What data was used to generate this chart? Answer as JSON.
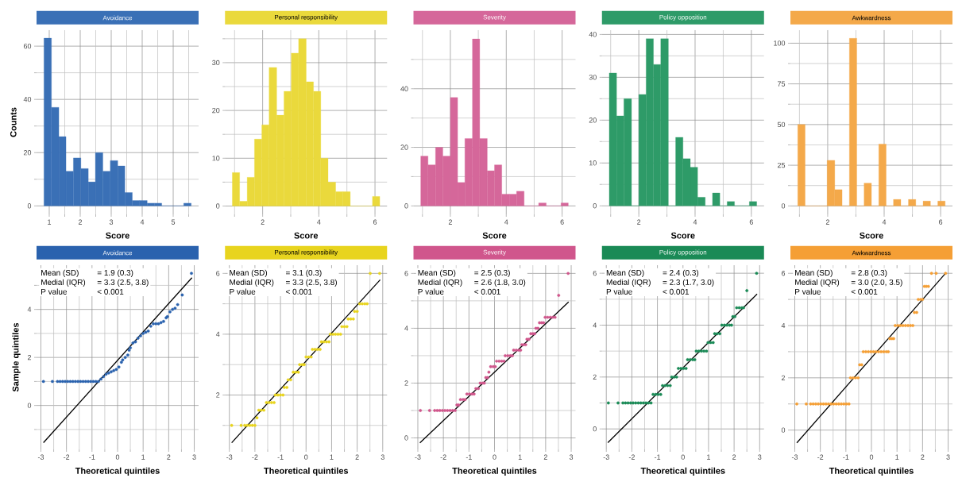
{
  "chart_data": [
    {
      "type": "histogram",
      "title": "Avoidance",
      "xlabel": "Score",
      "ylabel": "Counts",
      "color": "#3a70b6",
      "bins": [
        0.83,
        1.07,
        1.31,
        1.54,
        1.78,
        2.02,
        2.26,
        2.49,
        2.73,
        2.97,
        3.21,
        3.44,
        3.68,
        3.92,
        4.16,
        4.39,
        4.63,
        4.87,
        5.11,
        5.34,
        5.58
      ],
      "values": [
        63,
        37,
        26,
        13,
        18,
        14,
        9,
        20,
        13,
        17,
        15,
        5,
        2,
        2,
        1,
        1,
        0,
        0,
        0,
        1
      ],
      "xlim": [
        0.59,
        5.82
      ],
      "ylim": [
        -3.2,
        66
      ],
      "xticks": [
        1,
        2,
        3,
        4,
        5,
        {
          "value": 1.5,
          "label": null
        },
        {
          "value": 2.5,
          "label": null
        },
        {
          "value": 3.5,
          "label": null
        },
        {
          "value": 4.5,
          "label": null
        },
        {
          "value": 5.5,
          "label": null
        }
      ],
      "yticks": [
        0,
        20,
        40,
        60,
        {
          "value": 10,
          "label": null
        },
        {
          "value": 30,
          "label": null
        },
        {
          "value": 50,
          "label": null
        }
      ],
      "grid": true
    },
    {
      "type": "histogram",
      "title": "Personal responsibility",
      "xlabel": "Score",
      "color": "#ead93c",
      "bins": [
        0.92,
        1.18,
        1.45,
        1.71,
        1.97,
        2.23,
        2.5,
        2.76,
        3.02,
        3.28,
        3.55,
        3.81,
        4.07,
        4.33,
        4.6,
        4.86,
        5.12,
        5.38,
        5.65,
        5.91,
        6.17
      ],
      "values": [
        7,
        1,
        6,
        14,
        17,
        29,
        19,
        24,
        32,
        35,
        26,
        24,
        10,
        5,
        3,
        3,
        0,
        0,
        0,
        2
      ],
      "xlim": [
        0.66,
        6.43
      ],
      "ylim": [
        -1.75,
        36.8
      ],
      "xticks": [
        2,
        4,
        6,
        {
          "value": 1,
          "label": null
        },
        {
          "value": 3,
          "label": null
        },
        {
          "value": 5,
          "label": null
        }
      ],
      "yticks": [
        0,
        10,
        20,
        30,
        {
          "value": 5,
          "label": null
        },
        {
          "value": 15,
          "label": null
        },
        {
          "value": 25,
          "label": null
        },
        {
          "value": 35,
          "label": null
        }
      ],
      "grid": true
    },
    {
      "type": "histogram",
      "title": "Severity",
      "xlabel": "Score",
      "color": "#d5679a",
      "bins": [
        0.94,
        1.2,
        1.47,
        1.73,
        2.0,
        2.26,
        2.52,
        2.79,
        3.05,
        3.32,
        3.58,
        3.84,
        4.11,
        4.37,
        4.64,
        4.9,
        5.16,
        5.43,
        5.69,
        5.96,
        6.22
      ],
      "values": [
        17,
        14,
        20,
        17,
        37,
        8,
        23,
        57,
        23,
        12,
        14,
        4,
        4,
        5,
        0,
        0,
        1,
        0,
        0,
        1
      ],
      "xlim": [
        0.68,
        6.48
      ],
      "ylim": [
        -2.9,
        60
      ],
      "xticks": [
        2,
        4,
        6,
        {
          "value": 1,
          "label": null
        },
        {
          "value": 3,
          "label": null
        },
        {
          "value": 5,
          "label": null
        }
      ],
      "yticks": [
        0,
        20,
        40,
        {
          "value": 10,
          "label": null
        },
        {
          "value": 30,
          "label": null
        },
        {
          "value": 50,
          "label": null
        }
      ],
      "grid": true
    },
    {
      "type": "histogram",
      "title": "Policy opposition",
      "xlabel": "Score",
      "color": "#2e9b68",
      "bins": [
        0.95,
        1.21,
        1.47,
        1.74,
        2.0,
        2.26,
        2.52,
        2.78,
        3.05,
        3.31,
        3.57,
        3.83,
        4.09,
        4.36,
        4.62,
        4.88,
        5.14,
        5.4,
        5.67,
        5.93,
        6.19
      ],
      "values": [
        31,
        21,
        25,
        0,
        26,
        39,
        33,
        39,
        0,
        16,
        11,
        9,
        2,
        0,
        3,
        0,
        1,
        0,
        0,
        1
      ],
      "xlim": [
        0.69,
        6.45
      ],
      "ylim": [
        -2,
        41
      ],
      "xticks": [
        2,
        4,
        6,
        {
          "value": 1,
          "label": null
        },
        {
          "value": 3,
          "label": null
        },
        {
          "value": 5,
          "label": null
        }
      ],
      "yticks": [
        0,
        10,
        20,
        30,
        40,
        {
          "value": 5,
          "label": null
        },
        {
          "value": 15,
          "label": null
        },
        {
          "value": 25,
          "label": null
        },
        {
          "value": 35,
          "label": null
        }
      ],
      "grid": true
    },
    {
      "type": "histogram",
      "title": "Awkwardness",
      "xlabel": "Score",
      "color": "#f4a94a",
      "bins": [
        0.94,
        1.2,
        1.46,
        1.72,
        1.98,
        2.25,
        2.51,
        2.77,
        3.03,
        3.29,
        3.55,
        3.81,
        4.07,
        4.33,
        4.59,
        4.86,
        5.12,
        5.38,
        5.64,
        5.9,
        6.16
      ],
      "values": [
        50,
        0,
        0,
        0,
        28,
        10,
        0,
        103,
        0,
        14,
        0,
        38,
        0,
        4,
        0,
        4,
        0,
        3,
        0,
        3
      ],
      "xlim": [
        0.68,
        6.42
      ],
      "ylim": [
        -5.2,
        108
      ],
      "xticks": [
        2,
        4,
        6,
        {
          "value": 1,
          "label": null
        },
        {
          "value": 3,
          "label": null
        },
        {
          "value": 5,
          "label": null
        }
      ],
      "yticks": [
        0,
        25,
        50,
        75,
        100,
        {
          "value": 12.5,
          "label": null
        },
        {
          "value": 37.5,
          "label": null
        },
        {
          "value": 62.5,
          "label": null
        },
        {
          "value": 87.5,
          "label": null
        }
      ],
      "grid": true
    },
    {
      "type": "scatter",
      "title": "Avoidance",
      "xlabel": "Theoretical quintiles",
      "ylabel": "Sample quintiles",
      "series": [
        {
          "type": "scatter",
          "marker": "circle",
          "color": "#2a62ae",
          "x": [
            -2.9,
            -2.55,
            -2.35,
            -2.25,
            -2.15,
            -2.05,
            -1.95,
            -1.85,
            -1.75,
            -1.65,
            -1.55,
            -1.45,
            -1.35,
            -1.25,
            -1.15,
            -1.05,
            -0.95,
            -0.85,
            -0.75,
            -0.65,
            -0.55,
            -0.45,
            -0.35,
            -0.25,
            -0.15,
            -0.05,
            0.05,
            0.15,
            0.2,
            0.3,
            0.4,
            0.45,
            0.5,
            0.6,
            0.7,
            0.8,
            0.9,
            1.0,
            1.1,
            1.2,
            1.3,
            1.4,
            1.5,
            1.6,
            1.7,
            1.8,
            1.9,
            1.95,
            2.05,
            2.15,
            2.25,
            2.35,
            2.53,
            2.89
          ],
          "values": [
            1,
            1,
            1,
            1,
            1,
            1,
            1,
            1,
            1,
            1,
            1,
            1,
            1,
            1,
            1,
            1,
            1,
            1,
            1,
            1.1,
            1.2,
            1.3,
            1.35,
            1.4,
            1.45,
            1.5,
            1.6,
            1.8,
            1.9,
            2.0,
            2.1,
            2.3,
            2.4,
            2.6,
            2.65,
            2.8,
            2.9,
            3.0,
            3.05,
            3.1,
            3.3,
            3.4,
            3.4,
            3.4,
            3.45,
            3.5,
            3.65,
            3.7,
            3.9,
            4.0,
            4.05,
            4.2,
            4.6,
            5.5
          ]
        },
        {
          "type": "line",
          "color": "#000000",
          "marker": "none",
          "x": [
            -2.9,
            2.91
          ],
          "values": [
            -1.55,
            5.32
          ]
        }
      ],
      "xlim": [
        -3.17,
        3.17
      ],
      "ylim": [
        -1.83,
        5.84
      ],
      "xticks": [
        -3,
        -2,
        -1,
        0,
        1,
        2,
        3,
        {
          "value": -2.5,
          "label": null
        },
        {
          "value": -1.5,
          "label": null
        },
        {
          "value": -0.5,
          "label": null
        },
        {
          "value": 0.5,
          "label": null
        },
        {
          "value": 1.5,
          "label": null
        },
        {
          "value": 2.5,
          "label": null
        }
      ],
      "yticks": [
        0,
        2,
        4,
        {
          "value": -1,
          "label": null
        },
        {
          "value": 1,
          "label": null
        },
        {
          "value": 3,
          "label": null
        },
        {
          "value": 5,
          "label": null
        }
      ],
      "grid": true,
      "annotations": [
        "Mean (SD)",
        "= 1.9 (0.3)",
        "Medial (IQR)",
        "= 3.3 (2.5, 3.8)",
        "P value",
        "< 0.001"
      ]
    },
    {
      "type": "scatter",
      "title": "Personal responsibility",
      "xlabel": "Theoretical quintiles",
      "series": [
        {
          "type": "scatter",
          "marker": "circle",
          "color": "#e8d41e",
          "x": [
            -2.91,
            -2.54,
            -2.4,
            -2.3,
            -2.2,
            -2.1,
            -2.0,
            -1.92,
            -1.85,
            -1.75,
            -1.65,
            -1.55,
            -1.45,
            -1.35,
            -1.25,
            -1.2,
            -1.1,
            -1.0,
            -0.9,
            -0.85,
            -0.75,
            -0.7,
            -0.6,
            -0.5,
            -0.4,
            -0.3,
            -0.25,
            -0.15,
            -0.07,
            0.0,
            0.1,
            0.2,
            0.25,
            0.35,
            0.45,
            0.55,
            0.6,
            0.7,
            0.8,
            0.9,
            0.95,
            1.05,
            1.15,
            1.25,
            1.35,
            1.4,
            1.5,
            1.6,
            1.65,
            1.75,
            1.85,
            1.9,
            2.0,
            2.1,
            2.2,
            2.3,
            2.39,
            2.51,
            2.88
          ],
          "values": [
            1,
            1,
            1,
            1,
            1,
            1,
            1,
            1.25,
            1.5,
            1.5,
            1.5,
            1.75,
            1.75,
            1.75,
            1.75,
            2,
            2,
            2,
            2,
            2.25,
            2.25,
            2.5,
            2.5,
            2.75,
            2.75,
            2.75,
            3,
            3,
            3,
            3.25,
            3.25,
            3.25,
            3.5,
            3.5,
            3.5,
            3.5,
            3.75,
            3.75,
            3.75,
            3.75,
            4,
            4,
            4,
            4,
            4,
            4.25,
            4.25,
            4.25,
            4.5,
            4.5,
            4.5,
            4.75,
            4.75,
            5,
            5,
            5,
            5,
            6,
            6
          ]
        },
        {
          "type": "line",
          "color": "#000000",
          "marker": "none",
          "x": [
            -2.91,
            2.9
          ],
          "values": [
            0.43,
            5.79
          ]
        }
      ],
      "xlim": [
        -3.17,
        3.17
      ],
      "ylim": [
        0.21,
        6.27
      ],
      "xticks": [
        -3,
        -2,
        -1,
        0,
        1,
        2,
        3,
        {
          "value": -2.5,
          "label": null
        },
        {
          "value": -1.5,
          "label": null
        },
        {
          "value": -0.5,
          "label": null
        },
        {
          "value": 0.5,
          "label": null
        },
        {
          "value": 1.5,
          "label": null
        },
        {
          "value": 2.5,
          "label": null
        }
      ],
      "yticks": [
        2,
        4,
        6,
        {
          "value": 1,
          "label": null
        },
        {
          "value": 3,
          "label": null
        },
        {
          "value": 5,
          "label": null
        }
      ],
      "grid": true,
      "annotations": [
        "Mean (SD)",
        "= 3.1 (0.3)",
        "Medial (IQR)",
        "= 3.3 (2.5, 3.8)",
        "P value",
        "< 0.001"
      ]
    },
    {
      "type": "scatter",
      "title": "Severity",
      "xlabel": "Theoretical quintiles",
      "series": [
        {
          "type": "scatter",
          "marker": "circle",
          "color": "#d0568c",
          "x": [
            -2.9,
            -2.54,
            -2.34,
            -2.24,
            -2.14,
            -2.04,
            -1.94,
            -1.84,
            -1.74,
            -1.64,
            -1.54,
            -1.47,
            -1.4,
            -1.33,
            -1.23,
            -1.15,
            -1.08,
            -0.98,
            -0.88,
            -0.8,
            -0.73,
            -0.63,
            -0.56,
            -0.46,
            -0.4,
            -0.34,
            -0.27,
            -0.22,
            -0.15,
            -0.05,
            0.03,
            0.08,
            0.18,
            0.28,
            0.37,
            0.42,
            0.52,
            0.62,
            0.7,
            0.75,
            0.85,
            0.95,
            1.02,
            1.07,
            1.15,
            1.22,
            1.27,
            1.35,
            1.42,
            1.5,
            1.57,
            1.62,
            1.7,
            1.76,
            1.84,
            1.92,
            1.98,
            2.08,
            2.18,
            2.28,
            2.37,
            2.51,
            2.88
          ],
          "values": [
            1,
            1,
            1,
            1,
            1,
            1,
            1,
            1,
            1,
            1,
            1,
            1.2,
            1.2,
            1.4,
            1.4,
            1.4,
            1.6,
            1.6,
            1.6,
            1.6,
            1.8,
            1.8,
            2.0,
            2.0,
            2.0,
            2.2,
            2.2,
            2.4,
            2.6,
            2.6,
            2.6,
            2.8,
            2.8,
            2.8,
            2.8,
            3.0,
            3.0,
            3.0,
            3.0,
            3.2,
            3.2,
            3.2,
            3.2,
            3.4,
            3.4,
            3.4,
            3.6,
            3.6,
            3.8,
            3.8,
            3.8,
            4.0,
            4.0,
            4.2,
            4.2,
            4.2,
            4.4,
            4.4,
            4.4,
            4.4,
            4.4,
            5.2,
            6.0
          ]
        },
        {
          "type": "line",
          "color": "#000000",
          "marker": "none",
          "x": [
            -2.92,
            2.9
          ],
          "values": [
            -0.18,
            4.96
          ]
        }
      ],
      "xlim": [
        -3.17,
        3.17
      ],
      "ylim": [
        -0.42,
        6.3
      ],
      "xticks": [
        -3,
        -2,
        -1,
        0,
        1,
        2,
        3,
        {
          "value": -2.5,
          "label": null
        },
        {
          "value": -1.5,
          "label": null
        },
        {
          "value": -0.5,
          "label": null
        },
        {
          "value": 0.5,
          "label": null
        },
        {
          "value": 1.5,
          "label": null
        },
        {
          "value": 2.5,
          "label": null
        }
      ],
      "yticks": [
        0,
        2,
        4,
        6,
        {
          "value": 1,
          "label": null
        },
        {
          "value": 3,
          "label": null
        },
        {
          "value": 5,
          "label": null
        }
      ],
      "grid": true,
      "annotations": [
        "Mean (SD)",
        "= 2.5 (0.3)",
        "Medial (IQR)",
        "= 2.6 (1.8, 3.0)",
        "P value",
        "< 0.001"
      ]
    },
    {
      "type": "scatter",
      "title": "Policy opposition",
      "xlabel": "Theoretical quintiles",
      "series": [
        {
          "type": "scatter",
          "marker": "circle",
          "color": "#1a8a56",
          "x": [
            -2.92,
            -2.54,
            -2.35,
            -2.25,
            -2.15,
            -2.05,
            -1.95,
            -1.85,
            -1.75,
            -1.65,
            -1.55,
            -1.45,
            -1.35,
            -1.25,
            -1.17,
            -1.07,
            -0.97,
            -0.87,
            -0.8,
            -0.7,
            -0.6,
            -0.5,
            -0.44,
            -0.34,
            -0.25,
            -0.18,
            -0.08,
            0.02,
            0.12,
            0.18,
            0.28,
            0.38,
            0.46,
            0.52,
            0.62,
            0.72,
            0.82,
            0.92,
            0.98,
            1.08,
            1.18,
            1.24,
            1.34,
            1.44,
            1.52,
            1.62,
            1.72,
            1.82,
            1.9,
            1.95,
            2.03,
            2.1,
            2.2,
            2.3,
            2.37,
            2.5,
            2.88
          ],
          "values": [
            1,
            1,
            1,
            1,
            1,
            1,
            1,
            1,
            1,
            1,
            1,
            1,
            1,
            1,
            1.33,
            1.33,
            1.33,
            1.33,
            1.67,
            1.67,
            1.67,
            1.67,
            2,
            2,
            2,
            2.33,
            2.33,
            2.33,
            2.33,
            2.67,
            2.67,
            2.67,
            2.67,
            3,
            3,
            3,
            3,
            3,
            3.33,
            3.33,
            3.33,
            3.67,
            3.67,
            3.67,
            4,
            4,
            4,
            4,
            4,
            4.33,
            4.33,
            4.67,
            4.67,
            4.67,
            4.67,
            5.33,
            6
          ]
        },
        {
          "type": "line",
          "color": "#000000",
          "marker": "none",
          "x": [
            -2.94,
            2.9
          ],
          "values": [
            -0.53,
            5.2
          ]
        }
      ],
      "xlim": [
        -3.17,
        3.17
      ],
      "ylim": [
        -0.79,
        6.31
      ],
      "xticks": [
        -3,
        -2,
        -1,
        0,
        1,
        2,
        3,
        {
          "value": -2.5,
          "label": null
        },
        {
          "value": -1.5,
          "label": null
        },
        {
          "value": -0.5,
          "label": null
        },
        {
          "value": 0.5,
          "label": null
        },
        {
          "value": 1.5,
          "label": null
        },
        {
          "value": 2.5,
          "label": null
        }
      ],
      "yticks": [
        0,
        2,
        4,
        6,
        {
          "value": 1,
          "label": null
        },
        {
          "value": 3,
          "label": null
        },
        {
          "value": 5,
          "label": null
        }
      ],
      "grid": true,
      "annotations": [
        "Mean (SD)",
        "= 2.4 (0.3)",
        "Medial (IQR)",
        "= 2.3 (1.7, 3.0)",
        "P value",
        "< 0.001"
      ]
    },
    {
      "type": "scatter",
      "title": "Awkwardness",
      "xlabel": "Theoretical quintiles",
      "series": [
        {
          "type": "scatter",
          "marker": "circle",
          "color": "#f59f35",
          "x": [
            -2.92,
            -2.55,
            -2.38,
            -2.28,
            -2.18,
            -2.08,
            -1.98,
            -1.88,
            -1.78,
            -1.68,
            -1.58,
            -1.48,
            -1.38,
            -1.28,
            -1.18,
            -1.08,
            -0.98,
            -0.88,
            -0.82,
            -0.72,
            -0.62,
            -0.52,
            -0.46,
            -0.38,
            -0.32,
            -0.22,
            -0.12,
            -0.02,
            0.08,
            0.18,
            0.28,
            0.38,
            0.48,
            0.58,
            0.66,
            0.72,
            0.8,
            0.87,
            0.93,
            1.03,
            1.13,
            1.23,
            1.33,
            1.43,
            1.53,
            1.62,
            1.68,
            1.77,
            1.83,
            1.92,
            2.0,
            2.07,
            2.15,
            2.23,
            2.35,
            2.53,
            2.9
          ],
          "values": [
            1,
            1,
            1,
            1,
            1,
            1,
            1,
            1,
            1,
            1,
            1,
            1,
            1,
            1,
            1,
            1,
            1,
            1,
            2,
            2,
            2,
            2,
            2.5,
            2.5,
            3,
            3,
            3,
            3,
            3,
            3,
            3,
            3,
            3,
            3,
            3,
            3.5,
            3.5,
            3.5,
            4,
            4,
            4,
            4,
            4,
            4,
            4,
            4,
            4.5,
            4.5,
            5,
            5,
            5,
            5.5,
            5.5,
            5.5,
            6,
            6,
            6
          ]
        },
        {
          "type": "line",
          "color": "#000000",
          "marker": "none",
          "x": [
            -2.92,
            2.88
          ],
          "values": [
            -0.49,
            5.98
          ]
        }
      ],
      "xlim": [
        -3.17,
        3.17
      ],
      "ylim": [
        -0.74,
        6.31
      ],
      "xticks": [
        -3,
        -2,
        -1,
        0,
        1,
        2,
        3,
        {
          "value": -2.5,
          "label": null
        },
        {
          "value": -1.5,
          "label": null
        },
        {
          "value": -0.5,
          "label": null
        },
        {
          "value": 0.5,
          "label": null
        },
        {
          "value": 1.5,
          "label": null
        },
        {
          "value": 2.5,
          "label": null
        }
      ],
      "yticks": [
        0,
        2,
        4,
        6,
        {
          "value": 1,
          "label": null
        },
        {
          "value": 3,
          "label": null
        },
        {
          "value": 5,
          "label": null
        }
      ],
      "grid": true,
      "annotations": [
        "Mean (SD)",
        "= 2.8 (0.3)",
        "Medial (IQR)",
        "= 3.0 (2.0, 3.5)",
        "P value",
        "< 0.001"
      ]
    }
  ]
}
